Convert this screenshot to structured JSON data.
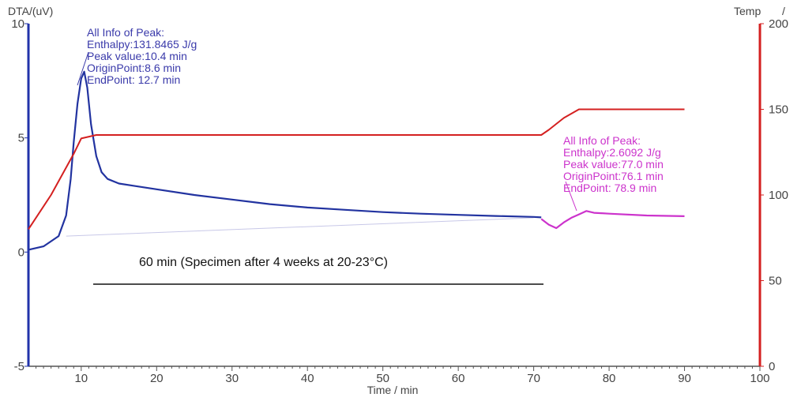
{
  "chart_data": {
    "type": "line",
    "title": "",
    "xlabel": "Time / min",
    "ylabel_left": "DTA/(uV)",
    "ylabel_right": "Temp",
    "ylabel_right_suffix": "/",
    "xlim": [
      3,
      100
    ],
    "ylim_left": [
      -5,
      10
    ],
    "ylim_right": [
      0,
      200
    ],
    "x_ticks": [
      "10",
      "20",
      "30",
      "40",
      "50",
      "60",
      "70",
      "80",
      "90",
      "100"
    ],
    "y_left_ticks": [
      "-5",
      "0",
      "5",
      "10"
    ],
    "y_right_ticks": [
      "0",
      "50",
      "100",
      "150",
      "200"
    ],
    "grid": false,
    "colors": {
      "dta": "#2233a0",
      "temp": "#d42020",
      "peak2": "#cc33cc",
      "axis_left": "#2233aa",
      "axis_right": "#d42020"
    },
    "series": [
      {
        "axis": "left",
        "x": [
          3,
          5,
          7,
          8,
          8.6,
          9,
          9.5,
          10,
          10.4,
          10.8,
          11.3,
          12,
          12.7,
          13.5,
          15,
          17,
          20,
          25,
          30,
          35,
          40,
          45,
          50,
          55,
          60,
          65,
          70,
          71
        ],
        "y": [
          0.1,
          0.25,
          0.7,
          1.6,
          3.2,
          4.8,
          6.5,
          7.6,
          7.9,
          7.2,
          5.6,
          4.2,
          3.5,
          3.2,
          3.0,
          2.9,
          2.75,
          2.5,
          2.3,
          2.1,
          1.95,
          1.85,
          1.75,
          1.68,
          1.63,
          1.58,
          1.54,
          1.52
        ]
      },
      {
        "axis": "left",
        "x": [
          71,
          72,
          73,
          74,
          75,
          76,
          77,
          78,
          79,
          80,
          85,
          90
        ],
        "y": [
          1.45,
          1.2,
          1.05,
          1.3,
          1.5,
          1.65,
          1.8,
          1.72,
          1.7,
          1.68,
          1.6,
          1.57
        ]
      },
      {
        "axis": "right",
        "x": [
          3,
          6,
          9,
          10,
          12,
          20,
          40,
          60,
          71,
          72,
          74,
          76,
          78,
          90
        ],
        "y": [
          80,
          100,
          124,
          133,
          135,
          135,
          135,
          135,
          135,
          138,
          145,
          150,
          150,
          150
        ]
      }
    ],
    "annotations": [
      {
        "color": "#3a3aaa",
        "lines": [
          "All Info of Peak:",
          "Enthalpy:131.8465 J/g",
          "Peak value:10.4 min",
          "OriginPoint:8.6 min",
          "EndPoint: 12.7 min"
        ]
      },
      {
        "color": "#cc33cc",
        "lines": [
          "All Info of Peak:",
          "Enthalpy:2.6092 J/g",
          "Peak value:77.0 min",
          "OriginPoint:76.1 min",
          "EndPoint: 78.9 min"
        ]
      }
    ],
    "caption": "60 min (Specimen after 4 weeks at 20-23°C)"
  }
}
